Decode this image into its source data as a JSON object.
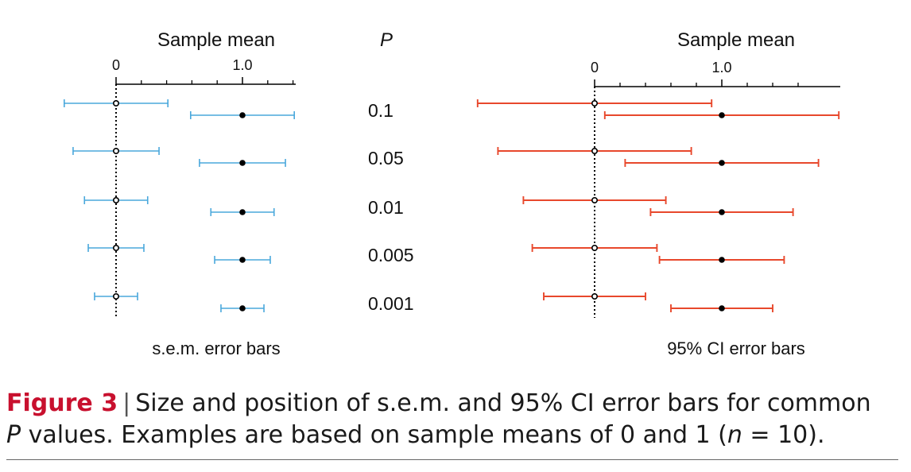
{
  "colors": {
    "sem": "#4aa8dc",
    "ci": "#e8482c",
    "caption_accent": "#c8102e"
  },
  "p_header": "P",
  "chart_data": [
    {
      "type": "errorbar",
      "xlabel": "Sample mean",
      "ticks": [
        {
          "value": 0,
          "label": "0"
        },
        {
          "value": 1,
          "label": "1.0"
        }
      ],
      "minor_ticks": [
        0.2,
        0.4,
        0.6,
        0.8,
        1.2,
        1.4
      ],
      "xlim": [
        -0.4,
        1.42
      ],
      "footer": "s.e.m. error bars",
      "rows": [
        {
          "p": "0.1",
          "group0": {
            "mean": 0,
            "low": -0.41,
            "high": 0.41
          },
          "group1": {
            "mean": 1,
            "low": 0.59,
            "high": 1.41
          }
        },
        {
          "p": "0.05",
          "group0": {
            "mean": 0,
            "low": -0.34,
            "high": 0.34
          },
          "group1": {
            "mean": 1,
            "low": 0.66,
            "high": 1.34
          }
        },
        {
          "p": "0.01",
          "group0": {
            "mean": 0,
            "low": -0.25,
            "high": 0.25
          },
          "group1": {
            "mean": 1,
            "low": 0.75,
            "high": 1.25
          }
        },
        {
          "p": "0.005",
          "group0": {
            "mean": 0,
            "low": -0.22,
            "high": 0.22
          },
          "group1": {
            "mean": 1,
            "low": 0.78,
            "high": 1.22
          }
        },
        {
          "p": "0.001",
          "group0": {
            "mean": 0,
            "low": -0.17,
            "high": 0.17
          },
          "group1": {
            "mean": 1,
            "low": 0.83,
            "high": 1.17
          }
        }
      ]
    },
    {
      "type": "errorbar",
      "xlabel": "Sample mean",
      "ticks": [
        {
          "value": 0,
          "label": "0"
        },
        {
          "value": 1,
          "label": "1.0"
        }
      ],
      "minor_ticks": [
        0.2,
        0.4,
        0.6,
        0.8,
        1.2,
        1.4,
        1.6
      ],
      "xlim": [
        -0.92,
        1.95
      ],
      "footer": "95% CI error bars",
      "rows": [
        {
          "p": "0.1",
          "group0": {
            "mean": 0,
            "low": -0.92,
            "high": 0.92
          },
          "group1": {
            "mean": 1,
            "low": 0.08,
            "high": 1.92
          }
        },
        {
          "p": "0.05",
          "group0": {
            "mean": 0,
            "low": -0.76,
            "high": 0.76
          },
          "group1": {
            "mean": 1,
            "low": 0.24,
            "high": 1.76
          }
        },
        {
          "p": "0.01",
          "group0": {
            "mean": 0,
            "low": -0.56,
            "high": 0.56
          },
          "group1": {
            "mean": 1,
            "low": 0.44,
            "high": 1.56
          }
        },
        {
          "p": "0.005",
          "group0": {
            "mean": 0,
            "low": -0.49,
            "high": 0.49
          },
          "group1": {
            "mean": 1,
            "low": 0.51,
            "high": 1.49
          }
        },
        {
          "p": "0.001",
          "group0": {
            "mean": 0,
            "low": -0.4,
            "high": 0.4
          },
          "group1": {
            "mean": 1,
            "low": 0.6,
            "high": 1.4
          }
        }
      ]
    }
  ],
  "caption": {
    "figure_label": "Figure 3",
    "separator": "|",
    "line1": "Size and position of s.e.m. and 95% CI error bars for common",
    "p_letter": "P",
    "line2a": " values. Examples are based on sample means of 0 and 1 (",
    "n_letter": "n",
    "line2b": " = 10)."
  }
}
